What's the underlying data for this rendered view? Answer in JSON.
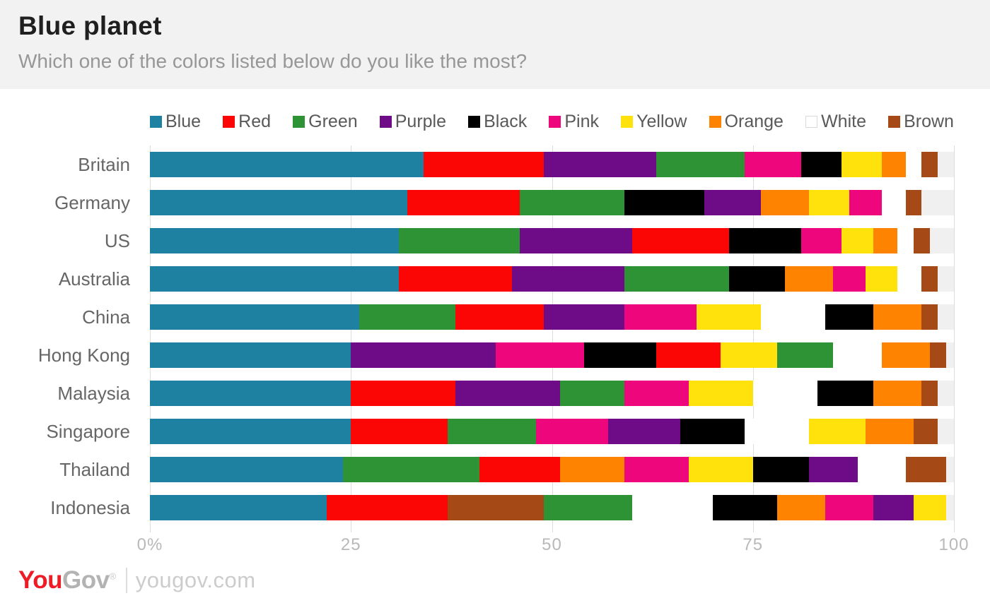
{
  "header": {
    "title": "Blue planet",
    "subtitle": "Which one of the colors listed below do you like the most?"
  },
  "chart_data": {
    "type": "bar",
    "orientation": "horizontal",
    "stacked": true,
    "title": "Blue planet",
    "question": "Which one of the colors listed below do you like the most?",
    "unit": "%",
    "xlim": [
      0,
      100
    ],
    "grid": true,
    "legend_position": "top",
    "row_track_color": "#f0f0f0",
    "gridline_color": "#dcdcdc",
    "x_ticks": [
      {
        "label": "0%",
        "pos": 0
      },
      {
        "label": "25",
        "pos": 25
      },
      {
        "label": "50",
        "pos": 50
      },
      {
        "label": "75",
        "pos": 75
      },
      {
        "label": "100",
        "pos": 100
      }
    ],
    "legend": [
      {
        "name": "Blue",
        "color": "#1e81a2"
      },
      {
        "name": "Red",
        "color": "#fb0505"
      },
      {
        "name": "Green",
        "color": "#2e9334"
      },
      {
        "name": "Purple",
        "color": "#6e0b87"
      },
      {
        "name": "Black",
        "color": "#000000"
      },
      {
        "name": "Pink",
        "color": "#ee067d"
      },
      {
        "name": "Yellow",
        "color": "#ffe20c"
      },
      {
        "name": "Orange",
        "color": "#fe8301"
      },
      {
        "name": "White",
        "color": "#ffffff"
      },
      {
        "name": "Brown",
        "color": "#a54a16"
      }
    ],
    "rows": [
      {
        "country": "Britain",
        "segments": [
          {
            "color": "Blue",
            "value": 34
          },
          {
            "color": "Red",
            "value": 15
          },
          {
            "color": "Purple",
            "value": 14
          },
          {
            "color": "Green",
            "value": 11
          },
          {
            "color": "Pink",
            "value": 7
          },
          {
            "color": "Black",
            "value": 5
          },
          {
            "color": "Yellow",
            "value": 5
          },
          {
            "color": "Orange",
            "value": 3
          },
          {
            "color": "White",
            "value": 2
          },
          {
            "color": "Brown",
            "value": 2
          }
        ]
      },
      {
        "country": "Germany",
        "segments": [
          {
            "color": "Blue",
            "value": 32
          },
          {
            "color": "Red",
            "value": 14
          },
          {
            "color": "Green",
            "value": 13
          },
          {
            "color": "Black",
            "value": 10
          },
          {
            "color": "Purple",
            "value": 7
          },
          {
            "color": "Orange",
            "value": 6
          },
          {
            "color": "Yellow",
            "value": 5
          },
          {
            "color": "Pink",
            "value": 4
          },
          {
            "color": "White",
            "value": 3
          },
          {
            "color": "Brown",
            "value": 2
          }
        ]
      },
      {
        "country": "US",
        "segments": [
          {
            "color": "Blue",
            "value": 31
          },
          {
            "color": "Green",
            "value": 15
          },
          {
            "color": "Purple",
            "value": 14
          },
          {
            "color": "Red",
            "value": 12
          },
          {
            "color": "Black",
            "value": 9
          },
          {
            "color": "Pink",
            "value": 5
          },
          {
            "color": "Yellow",
            "value": 4
          },
          {
            "color": "Orange",
            "value": 3
          },
          {
            "color": "White",
            "value": 2
          },
          {
            "color": "Brown",
            "value": 2
          }
        ]
      },
      {
        "country": "Australia",
        "segments": [
          {
            "color": "Blue",
            "value": 31
          },
          {
            "color": "Red",
            "value": 14
          },
          {
            "color": "Purple",
            "value": 14
          },
          {
            "color": "Green",
            "value": 13
          },
          {
            "color": "Black",
            "value": 7
          },
          {
            "color": "Orange",
            "value": 6
          },
          {
            "color": "Pink",
            "value": 4
          },
          {
            "color": "Yellow",
            "value": 4
          },
          {
            "color": "White",
            "value": 3
          },
          {
            "color": "Brown",
            "value": 2
          }
        ]
      },
      {
        "country": "China",
        "segments": [
          {
            "color": "Blue",
            "value": 26
          },
          {
            "color": "Green",
            "value": 12
          },
          {
            "color": "Red",
            "value": 11
          },
          {
            "color": "Purple",
            "value": 10
          },
          {
            "color": "Pink",
            "value": 9
          },
          {
            "color": "Yellow",
            "value": 8
          },
          {
            "color": "White",
            "value": 8
          },
          {
            "color": "Black",
            "value": 6
          },
          {
            "color": "Orange",
            "value": 6
          },
          {
            "color": "Brown",
            "value": 2
          }
        ]
      },
      {
        "country": "Hong Kong",
        "segments": [
          {
            "color": "Blue",
            "value": 25
          },
          {
            "color": "Purple",
            "value": 18
          },
          {
            "color": "Pink",
            "value": 11
          },
          {
            "color": "Black",
            "value": 9
          },
          {
            "color": "Red",
            "value": 8
          },
          {
            "color": "Yellow",
            "value": 7
          },
          {
            "color": "Green",
            "value": 7
          },
          {
            "color": "White",
            "value": 6
          },
          {
            "color": "Orange",
            "value": 6
          },
          {
            "color": "Brown",
            "value": 2
          }
        ]
      },
      {
        "country": "Malaysia",
        "segments": [
          {
            "color": "Blue",
            "value": 25
          },
          {
            "color": "Red",
            "value": 13
          },
          {
            "color": "Purple",
            "value": 13
          },
          {
            "color": "Green",
            "value": 8
          },
          {
            "color": "Pink",
            "value": 8
          },
          {
            "color": "Yellow",
            "value": 8
          },
          {
            "color": "White",
            "value": 8
          },
          {
            "color": "Black",
            "value": 7
          },
          {
            "color": "Orange",
            "value": 6
          },
          {
            "color": "Brown",
            "value": 2
          }
        ]
      },
      {
        "country": "Singapore",
        "segments": [
          {
            "color": "Blue",
            "value": 25
          },
          {
            "color": "Red",
            "value": 12
          },
          {
            "color": "Green",
            "value": 11
          },
          {
            "color": "Pink",
            "value": 9
          },
          {
            "color": "Purple",
            "value": 9
          },
          {
            "color": "Black",
            "value": 8
          },
          {
            "color": "White",
            "value": 8
          },
          {
            "color": "Yellow",
            "value": 7
          },
          {
            "color": "Orange",
            "value": 6
          },
          {
            "color": "Brown",
            "value": 3
          }
        ]
      },
      {
        "country": "Thailand",
        "segments": [
          {
            "color": "Blue",
            "value": 24
          },
          {
            "color": "Green",
            "value": 17
          },
          {
            "color": "Red",
            "value": 10
          },
          {
            "color": "Orange",
            "value": 8
          },
          {
            "color": "Pink",
            "value": 8
          },
          {
            "color": "Yellow",
            "value": 8
          },
          {
            "color": "Black",
            "value": 7
          },
          {
            "color": "Purple",
            "value": 6
          },
          {
            "color": "White",
            "value": 6
          },
          {
            "color": "Brown",
            "value": 5
          }
        ]
      },
      {
        "country": "Indonesia",
        "segments": [
          {
            "color": "Blue",
            "value": 22
          },
          {
            "color": "Red",
            "value": 15
          },
          {
            "color": "Brown",
            "value": 12
          },
          {
            "color": "Green",
            "value": 11
          },
          {
            "color": "White",
            "value": 10
          },
          {
            "color": "Black",
            "value": 8
          },
          {
            "color": "Orange",
            "value": 6
          },
          {
            "color": "Pink",
            "value": 6
          },
          {
            "color": "Purple",
            "value": 5
          },
          {
            "color": "Yellow",
            "value": 4
          }
        ]
      }
    ]
  },
  "footer": {
    "logo_you": "You",
    "logo_gov": "Gov",
    "logo_reg": "®",
    "site": "yougov.com"
  }
}
